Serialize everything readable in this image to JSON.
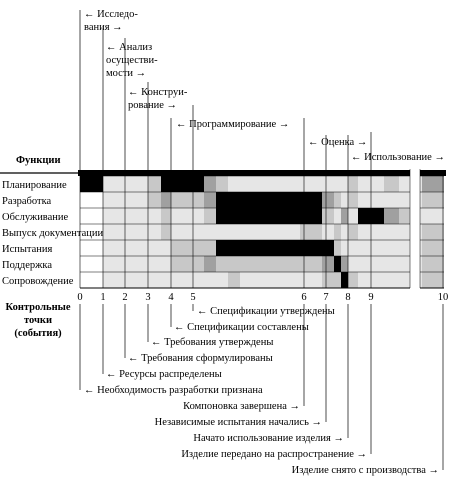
{
  "functions_title": "Функции",
  "milestones_title_lines": [
    "Контрольные",
    "точки",
    "(события)"
  ],
  "phases": [
    {
      "lines": [
        "← Исследо-",
        "вания →"
      ]
    },
    {
      "lines": [
        "← Анализ",
        "осуществи-",
        "мости →"
      ]
    },
    {
      "lines": [
        "← Конструи-",
        "рование →"
      ]
    },
    {
      "lines": [
        "←        Программирование        →"
      ]
    },
    {
      "lines": [
        "← Оценка →"
      ]
    },
    {
      "lines": [
        "← Использование →"
      ]
    }
  ],
  "functions": [
    "Планирование",
    "Разработка",
    "Обслуживание",
    "Выпуск документации",
    "Испытания",
    "Поддержка",
    "Сопровождение"
  ],
  "milestone_numbers": [
    "0",
    "1",
    "2",
    "3",
    "4",
    "5",
    "6",
    "7",
    "8",
    "9",
    "10"
  ],
  "events": [
    "← Спецификации утверждены",
    "← Спецификации составлены",
    "← Требования утверждены",
    "← Требования сформулированы",
    "← Ресурсы распределены",
    "← Необходимость разработки признана",
    "Компоновка завершена →",
    "Независимые испытания начались →",
    "Начато использование изделия →",
    "Изделие передано на распространение →",
    "Изделие снято с производства →"
  ],
  "colors": {
    "level0": "#ffffff",
    "level1": "#e6e6e6",
    "level2": "#c8c8c8",
    "level3": "#a0a0a0",
    "level4": "#000000"
  },
  "intensity": [
    [
      4,
      1,
      1,
      2,
      4,
      4,
      3,
      2,
      1,
      1,
      1,
      1,
      1,
      1,
      1,
      2,
      1,
      1,
      2,
      1,
      1,
      3
    ],
    [
      0,
      1,
      1,
      2,
      3,
      2,
      3,
      4,
      4,
      4,
      4,
      4,
      3,
      2,
      1,
      2,
      1,
      1,
      1,
      1,
      1,
      2
    ],
    [
      0,
      1,
      1,
      1,
      2,
      1,
      2,
      4,
      4,
      4,
      4,
      4,
      2,
      1,
      3,
      1,
      4,
      4,
      3,
      2,
      1,
      1
    ],
    [
      0,
      1,
      1,
      1,
      2,
      1,
      1,
      1,
      1,
      1,
      1,
      2,
      1,
      2,
      1,
      2,
      1,
      1,
      1,
      1,
      1,
      2
    ],
    [
      0,
      1,
      1,
      1,
      1,
      2,
      2,
      4,
      4,
      4,
      4,
      4,
      4,
      2,
      1,
      1,
      1,
      1,
      1,
      1,
      1,
      2
    ],
    [
      0,
      1,
      1,
      1,
      1,
      2,
      3,
      2,
      2,
      2,
      2,
      2,
      3,
      4,
      3,
      1,
      1,
      1,
      1,
      1,
      1,
      2
    ],
    [
      0,
      1,
      1,
      1,
      1,
      1,
      1,
      1,
      2,
      1,
      1,
      1,
      2,
      2,
      4,
      2,
      1,
      1,
      1,
      1,
      1,
      2
    ]
  ]
}
